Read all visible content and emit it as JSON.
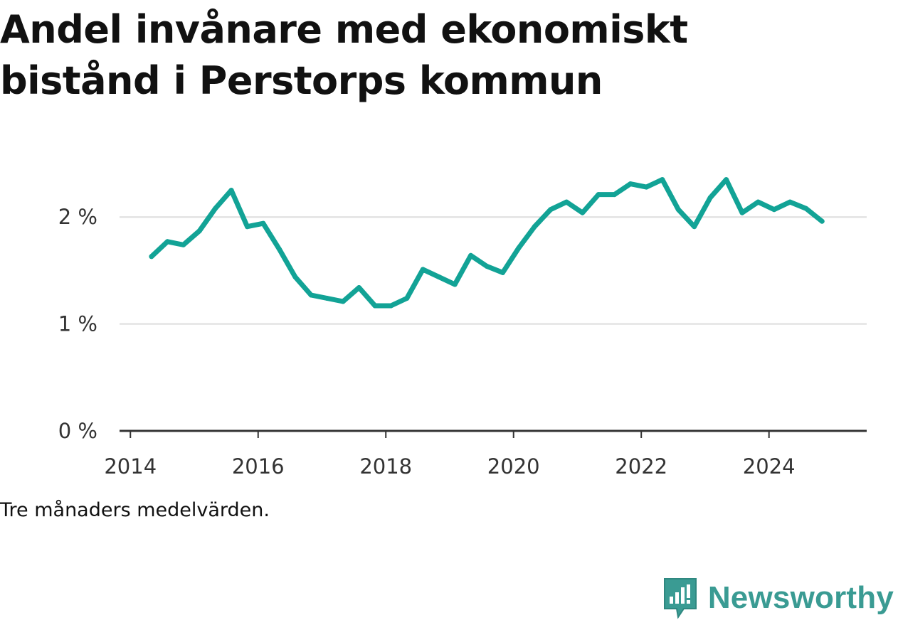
{
  "title": "Andel invånare med ekonomiskt bistånd i Perstorps kommun",
  "note": "Tre månaders medelvärden.",
  "brand": {
    "name": "Newsworthy",
    "icon": "newsworthy-logo-icon",
    "color": "#3a9b93"
  },
  "chart_data": {
    "type": "line",
    "title": "Andel invånare med ekonomiskt bistånd i Perstorps kommun",
    "xlabel": "",
    "ylabel": "",
    "x_ticks": [
      "2014",
      "2016",
      "2018",
      "2020",
      "2022",
      "2024"
    ],
    "y_ticks": [
      "0 %",
      "1 %",
      "2 %"
    ],
    "xlim": [
      2013.83,
      2025.53
    ],
    "ylim": [
      0,
      2.5
    ],
    "grid": true,
    "legend": "none",
    "line_color": "#12a396",
    "series": [
      {
        "name": "",
        "points": [
          [
            2014.33,
            1.63
          ],
          [
            2014.58,
            1.77
          ],
          [
            2014.83,
            1.74
          ],
          [
            2015.08,
            1.87
          ],
          [
            2015.33,
            2.08
          ],
          [
            2015.58,
            2.25
          ],
          [
            2015.83,
            1.91
          ],
          [
            2016.08,
            1.94
          ],
          [
            2016.33,
            1.7
          ],
          [
            2016.58,
            1.44
          ],
          [
            2016.83,
            1.27
          ],
          [
            2017.08,
            1.24
          ],
          [
            2017.33,
            1.21
          ],
          [
            2017.58,
            1.34
          ],
          [
            2017.83,
            1.17
          ],
          [
            2018.08,
            1.17
          ],
          [
            2018.33,
            1.24
          ],
          [
            2018.58,
            1.51
          ],
          [
            2018.83,
            1.44
          ],
          [
            2019.08,
            1.37
          ],
          [
            2019.33,
            1.64
          ],
          [
            2019.58,
            1.54
          ],
          [
            2019.83,
            1.48
          ],
          [
            2020.08,
            1.71
          ],
          [
            2020.33,
            1.91
          ],
          [
            2020.58,
            2.07
          ],
          [
            2020.83,
            2.14
          ],
          [
            2021.08,
            2.04
          ],
          [
            2021.33,
            2.21
          ],
          [
            2021.58,
            2.21
          ],
          [
            2021.83,
            2.31
          ],
          [
            2022.08,
            2.28
          ],
          [
            2022.33,
            2.35
          ],
          [
            2022.58,
            2.07
          ],
          [
            2022.83,
            1.91
          ],
          [
            2023.08,
            2.18
          ],
          [
            2023.33,
            2.35
          ],
          [
            2023.58,
            2.04
          ],
          [
            2023.83,
            2.14
          ],
          [
            2024.08,
            2.07
          ],
          [
            2024.33,
            2.14
          ],
          [
            2024.58,
            2.08
          ],
          [
            2024.83,
            1.96
          ]
        ]
      }
    ]
  }
}
